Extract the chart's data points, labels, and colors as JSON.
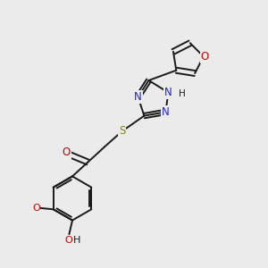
{
  "background_color": "#ebebeb",
  "bond_color": "#1a1a1a",
  "n_color": "#2222cc",
  "o_color": "#cc0000",
  "s_color": "#888800",
  "h_color": "#336666",
  "font_size": 8.5,
  "small_font": 8.0,
  "lw": 1.4,
  "fig_w": 3.0,
  "fig_h": 3.0,
  "dpi": 100,
  "xlim": [
    0,
    10
  ],
  "ylim": [
    0,
    10
  ]
}
